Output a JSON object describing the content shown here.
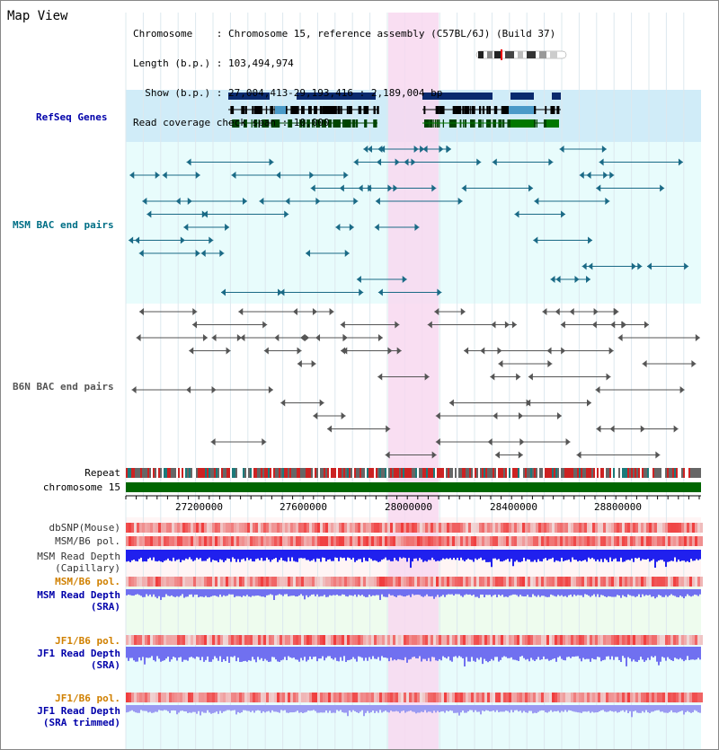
{
  "title": "Map View",
  "info": {
    "line1": "Chromosome    : Chromosome 15, reference assembly (C57BL/6J) (Build 37)",
    "line2": "Length (b.p.) : 103,494,974",
    "line3": "  Show (b.p.) : 27,004,413-29,193,416 : 2,189,004 bp",
    "line4": "Read coverage check span : 10,000"
  },
  "tracks": {
    "refseq": "RefSeq Genes",
    "msm_bac": "MSM BAC end pairs",
    "b6n_bac": "B6N BAC end pairs",
    "repeat": "Repeat",
    "chromosome": "chromosome 15",
    "dbsnp": "dbSNP(Mouse)",
    "msmb6pol": "MSM/B6 pol.",
    "msm_depth_cap_1": "MSM Read Depth",
    "msm_depth_cap_2": "(Capillary)",
    "msmb6pol2": "MSM/B6 pol.",
    "msm_depth_sra_1": "MSM Read Depth",
    "msm_depth_sra_2": "(SRA)",
    "jf1b6pol": "JF1/B6 pol.",
    "jf1_depth_1": "JF1 Read Depth",
    "jf1_depth_2": "(SRA)",
    "jf1b6pol2": "JF1/B6 pol.",
    "jf1_trim_1": "JF1 Read Depth",
    "jf1_trim_2": "(SRA trimmed)"
  },
  "axis": {
    "ticks": [
      "27200000",
      "27600000",
      "28000000",
      "28400000",
      "28800000"
    ]
  },
  "colors": {
    "highlight": "#f8d8f0",
    "refseq_bg": "#d0ecf8",
    "track_bg": "#e8fcfc",
    "gene_navy": "#0a2a6e",
    "gene_teal": "#4a9ac8",
    "gene_green": "#007700",
    "bac_msm": "#1a6a86",
    "bac_b6n": "#555555",
    "chrom_green": "#006600",
    "depth_blue": "#2020ee",
    "depth_lightblue": "#7070f0"
  }
}
